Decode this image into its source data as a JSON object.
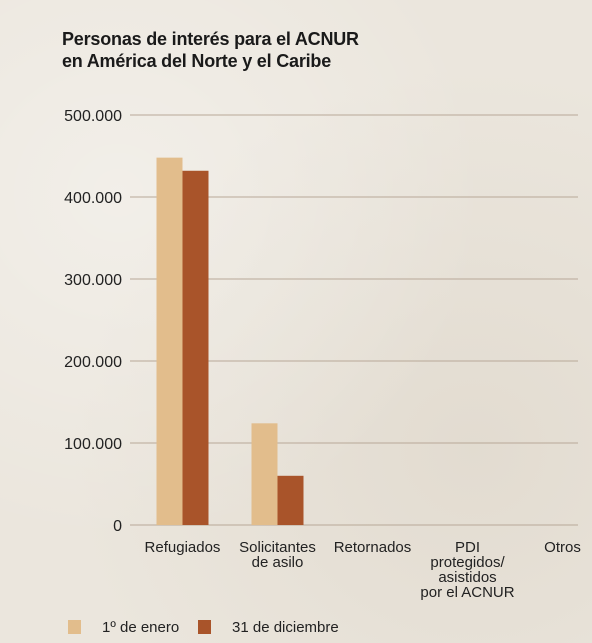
{
  "chart_data": {
    "type": "bar",
    "title": [
      "Personas de interés para el ACNUR",
      "en América del Norte y el Caribe"
    ],
    "categories": [
      [
        "Refugiados"
      ],
      [
        "Solicitantes",
        "de asilo"
      ],
      [
        "Retornados"
      ],
      [
        "PDI",
        "protegidos/",
        "asistidos",
        "por el ACNUR"
      ],
      [
        "Otros"
      ]
    ],
    "series": [
      {
        "name": "1º de enero",
        "color": "#e2bd8c",
        "values": [
          448000,
          124000,
          0,
          0,
          0
        ]
      },
      {
        "name": "31 de diciembre",
        "color": "#a9542a",
        "values": [
          432000,
          60000,
          0,
          0,
          0
        ]
      }
    ],
    "ylim": [
      0,
      500000
    ],
    "yticks": [
      0,
      100000,
      200000,
      300000,
      400000,
      500000
    ],
    "ytick_labels": [
      "0",
      "100.000",
      "200.000",
      "300.000",
      "400.000",
      "500.000"
    ],
    "grid": true,
    "legend_placement": "bottom-left",
    "gridline_color": "#b8a898"
  }
}
